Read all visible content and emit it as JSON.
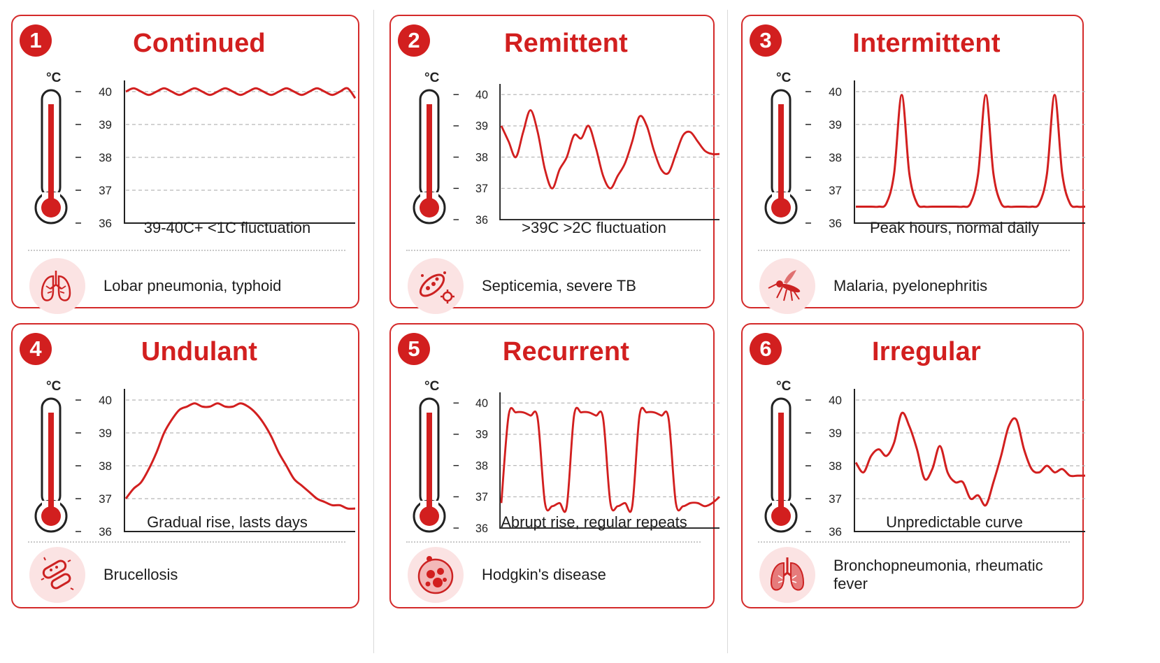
{
  "unit_symbol": "°C",
  "colors": {
    "accent": "#d21f1f",
    "icon_bg": "#fbe3e3",
    "grid": "#b8b8b8"
  },
  "y_axis_ticks": [
    "40",
    "39",
    "38",
    "37",
    "36"
  ],
  "cards": [
    {
      "number": "1",
      "title": "Continued",
      "caption": "39-40C+ <1C fluctuation",
      "disease": "Lobar pneumonia, typhoid",
      "icon": "lungs-outline-icon"
    },
    {
      "number": "2",
      "title": "Remittent",
      "caption": ">39C >2C fluctuation",
      "disease": "Septicemia, severe TB",
      "icon": "bacteria-icon"
    },
    {
      "number": "3",
      "title": "Intermittent",
      "caption": "Peak hours, normal daily",
      "disease": "Malaria, pyelonephritis",
      "icon": "mosquito-icon"
    },
    {
      "number": "4",
      "title": "Undulant",
      "caption": "Gradual rise, lasts days",
      "disease": "Brucellosis",
      "icon": "bacilli-icon"
    },
    {
      "number": "5",
      "title": "Recurrent",
      "caption": "Abrupt rise, regular repeats",
      "disease": "Hodgkin's disease",
      "icon": "cell-icon"
    },
    {
      "number": "6",
      "title": "Irregular",
      "caption": "Unpredictable curve",
      "disease": "Bronchopneumonia, rheumatic fever",
      "icon": "lungs-icon"
    }
  ],
  "chart_data": [
    {
      "type": "line",
      "title": "Continued",
      "ylim": [
        36,
        40
      ],
      "y_ticks": [
        36,
        37,
        38,
        39,
        40
      ],
      "x": [
        0,
        1,
        2,
        3,
        4,
        5,
        6,
        7,
        8,
        9,
        10,
        11,
        12,
        13,
        14,
        15,
        16,
        17,
        18,
        19,
        20,
        21,
        22,
        23,
        24,
        25,
        26,
        27,
        28,
        29,
        30
      ],
      "series": [
        {
          "values": [
            40.0,
            40.1,
            40.0,
            39.9,
            40.0,
            40.1,
            40.0,
            39.9,
            40.0,
            40.1,
            40.0,
            39.9,
            40.0,
            40.1,
            40.0,
            39.9,
            40.0,
            40.1,
            40.0,
            39.9,
            40.0,
            40.1,
            40.0,
            39.9,
            40.0,
            40.1,
            40.0,
            39.9,
            40.0,
            40.1,
            39.8
          ]
        }
      ]
    },
    {
      "type": "line",
      "title": "Remittent",
      "ylim": [
        36,
        40
      ],
      "y_ticks": [
        36,
        37,
        38,
        39,
        40
      ],
      "x": [
        0,
        1,
        2,
        3,
        4,
        5,
        6,
        7,
        8,
        9,
        10,
        11,
        12,
        13,
        14,
        15,
        16,
        17,
        18,
        19,
        20,
        21,
        22,
        23,
        24,
        25,
        26,
        27,
        28,
        29,
        30
      ],
      "series": [
        {
          "values": [
            39.0,
            38.5,
            38.0,
            38.8,
            39.5,
            38.8,
            37.6,
            37.0,
            37.6,
            38.0,
            38.7,
            38.6,
            39.0,
            38.3,
            37.4,
            37.0,
            37.4,
            37.8,
            38.5,
            39.3,
            39.0,
            38.2,
            37.6,
            37.5,
            38.1,
            38.7,
            38.8,
            38.5,
            38.2,
            38.1,
            38.1
          ]
        }
      ]
    },
    {
      "type": "line",
      "title": "Intermittent",
      "ylim": [
        36,
        40
      ],
      "y_ticks": [
        36,
        37,
        38,
        39,
        40
      ],
      "x": [
        0,
        1,
        2,
        3,
        4,
        5,
        6,
        7,
        8,
        9,
        10,
        11,
        12,
        13,
        14,
        15,
        16,
        17,
        18,
        19,
        20,
        21,
        22,
        23,
        24,
        25,
        26,
        27,
        28,
        29,
        30
      ],
      "series": [
        {
          "values": [
            36.5,
            36.5,
            36.5,
            36.5,
            36.6,
            37.5,
            39.9,
            37.5,
            36.6,
            36.5,
            36.5,
            36.5,
            36.5,
            36.5,
            36.5,
            36.6,
            37.5,
            39.9,
            37.5,
            36.6,
            36.5,
            36.5,
            36.5,
            36.5,
            36.6,
            37.5,
            39.9,
            37.5,
            36.6,
            36.5,
            36.5
          ]
        }
      ]
    },
    {
      "type": "line",
      "title": "Undulant",
      "ylim": [
        36,
        40
      ],
      "y_ticks": [
        36,
        37,
        38,
        39,
        40
      ],
      "x": [
        0,
        1,
        2,
        3,
        4,
        5,
        6,
        7,
        8,
        9,
        10,
        11,
        12,
        13,
        14,
        15,
        16,
        17,
        18,
        19,
        20,
        21,
        22,
        23,
        24,
        25,
        26,
        27,
        28,
        29,
        30
      ],
      "series": [
        {
          "values": [
            37.0,
            37.3,
            37.5,
            37.9,
            38.4,
            39.0,
            39.4,
            39.7,
            39.8,
            39.9,
            39.8,
            39.8,
            39.9,
            39.8,
            39.8,
            39.9,
            39.8,
            39.6,
            39.3,
            38.9,
            38.4,
            38.0,
            37.6,
            37.4,
            37.2,
            37.0,
            36.9,
            36.8,
            36.8,
            36.7,
            36.7
          ]
        }
      ]
    },
    {
      "type": "line",
      "title": "Recurrent",
      "ylim": [
        36,
        40
      ],
      "y_ticks": [
        36,
        37,
        38,
        39,
        40
      ],
      "x": [
        0,
        1,
        2,
        3,
        4,
        5,
        6,
        7,
        8,
        9,
        10,
        11,
        12,
        13,
        14,
        15,
        16,
        17,
        18,
        19,
        20,
        21,
        22,
        23,
        24,
        25,
        26,
        27,
        28,
        29,
        30
      ],
      "series": [
        {
          "values": [
            36.8,
            39.6,
            39.7,
            39.7,
            39.6,
            39.5,
            36.8,
            36.7,
            36.8,
            36.7,
            39.6,
            39.7,
            39.7,
            39.6,
            39.5,
            36.8,
            36.7,
            36.8,
            36.7,
            39.6,
            39.7,
            39.7,
            39.6,
            39.5,
            36.8,
            36.7,
            36.8,
            36.8,
            36.7,
            36.8,
            37.0
          ]
        }
      ]
    },
    {
      "type": "line",
      "title": "Irregular",
      "ylim": [
        36,
        40
      ],
      "y_ticks": [
        36,
        37,
        38,
        39,
        40
      ],
      "x": [
        0,
        1,
        2,
        3,
        4,
        5,
        6,
        7,
        8,
        9,
        10,
        11,
        12,
        13,
        14,
        15,
        16,
        17,
        18,
        19,
        20,
        21,
        22,
        23,
        24,
        25,
        26,
        27,
        28,
        29,
        30
      ],
      "series": [
        {
          "values": [
            38.1,
            37.8,
            38.3,
            38.5,
            38.3,
            38.7,
            39.6,
            39.2,
            38.5,
            37.6,
            37.9,
            38.6,
            37.8,
            37.5,
            37.5,
            37.0,
            37.1,
            36.8,
            37.5,
            38.3,
            39.2,
            39.4,
            38.5,
            37.9,
            37.8,
            38.0,
            37.8,
            37.9,
            37.7,
            37.7,
            37.7
          ]
        }
      ]
    }
  ]
}
